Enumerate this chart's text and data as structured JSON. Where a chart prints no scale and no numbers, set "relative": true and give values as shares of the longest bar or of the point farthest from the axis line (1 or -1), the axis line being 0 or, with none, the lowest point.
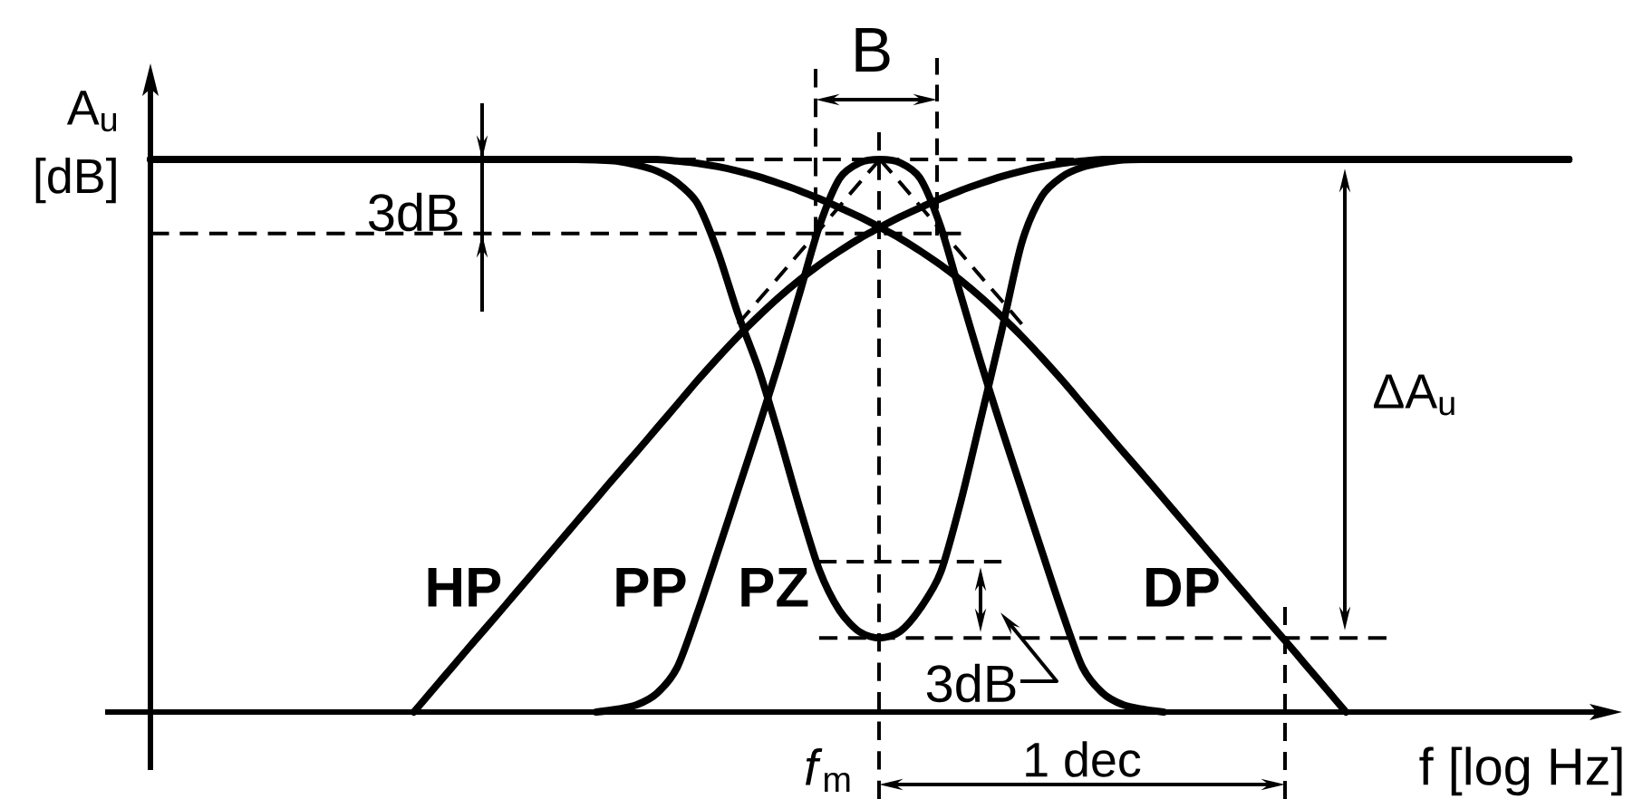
{
  "chart_data": {
    "type": "line",
    "relative": true,
    "xlabel": "f [log Hz]",
    "ylabel": "A$_{u}$ [dB]",
    "categories": [
      null,
      null,
      null,
      null,
      null,
      null,
      null,
      null,
      null,
      null,
      null,
      null,
      null,
      null,
      null,
      null,
      null,
      null,
      null,
      null,
      null,
      null,
      null,
      null,
      null,
      null,
      null,
      null,
      null,
      null,
      null,
      null,
      null,
      null,
      null,
      null,
      null,
      null,
      null,
      null,
      null,
      null,
      null,
      null,
      null,
      null,
      null,
      null,
      null,
      null,
      null,
      null,
      null,
      null,
      null,
      null,
      null,
      null,
      null,
      null,
      null,
      null,
      null,
      null,
      null,
      null,
      null,
      null,
      null,
      null,
      null
    ],
    "annotations": [
      "3dB",
      "B",
      "ΔA$_{u}$",
      "3dB",
      "1 dec",
      "*f*$_{m}$"
    ],
    "series": [
      {
        "name": "HP",
        "color": "#000000",
        "values": [
          null,
          null,
          null,
          null,
          null,
          null,
          null,
          null,
          null,
          null,
          null,
          null,
          null,
          0,
          0.043,
          0.086,
          0.129,
          0.171,
          0.214,
          0.257,
          0.3,
          0.343,
          0.386,
          0.429,
          0.471,
          0.514,
          0.557,
          0.6,
          0.641,
          0.68,
          0.716,
          0.75,
          0.781,
          0.809,
          0.834,
          0.857,
          0.877,
          0.896,
          0.913,
          0.929,
          0.944,
          0.957,
          0.969,
          0.979,
          0.987,
          0.993,
          0.997,
          1,
          1,
          1,
          1,
          1,
          1,
          1,
          1,
          1,
          1,
          1,
          1,
          1,
          1,
          1,
          1,
          1,
          1,
          1,
          1,
          1,
          1,
          1,
          1
        ]
      },
      {
        "name": "PP",
        "color": "#000000",
        "values": [
          null,
          null,
          null,
          null,
          null,
          null,
          null,
          null,
          null,
          null,
          null,
          null,
          null,
          null,
          null,
          null,
          null,
          null,
          null,
          null,
          null,
          null,
          0,
          0.005,
          0.013,
          0.034,
          0.081,
          0.18,
          0.29,
          0.402,
          0.514,
          0.63,
          0.753,
          0.878,
          0.965,
          0.994,
          1,
          0.994,
          0.965,
          0.878,
          0.753,
          0.63,
          0.514,
          0.402,
          0.29,
          0.18,
          0.081,
          0.034,
          0.013,
          0.005,
          0,
          null,
          null,
          null,
          null,
          null,
          null,
          null,
          null,
          null,
          null,
          null,
          null,
          null,
          null,
          null,
          null,
          null,
          null,
          null,
          null
        ]
      },
      {
        "name": "PZ",
        "color": "#000000",
        "values": [
          1,
          1,
          1,
          1,
          1,
          1,
          1,
          1,
          1,
          1,
          1,
          1,
          1,
          1,
          1,
          1,
          1,
          1,
          1,
          1,
          1,
          1,
          0.999,
          0.997,
          0.99,
          0.979,
          0.958,
          0.92,
          0.833,
          0.72,
          0.622,
          0.503,
          0.375,
          0.258,
          0.184,
          0.145,
          0.134,
          0.146,
          0.188,
          0.253,
          0.382,
          0.534,
          0.688,
          0.849,
          0.934,
          0.969,
          0.986,
          0.994,
          0.999,
          1,
          1,
          1,
          1,
          1,
          1,
          1,
          1,
          1,
          1,
          1,
          1,
          1,
          1,
          1,
          1,
          1,
          1,
          1,
          1,
          1,
          1
        ]
      },
      {
        "name": "DP",
        "color": "#000000",
        "values": [
          1,
          1,
          1,
          1,
          1,
          1,
          1,
          1,
          1,
          1,
          1,
          1,
          1,
          1,
          1,
          1,
          1,
          1,
          1,
          1,
          1,
          1,
          1,
          1,
          1,
          1,
          0.997,
          0.993,
          0.987,
          0.979,
          0.969,
          0.957,
          0.944,
          0.929,
          0.913,
          0.896,
          0.877,
          0.857,
          0.834,
          0.809,
          0.781,
          0.75,
          0.716,
          0.68,
          0.641,
          0.6,
          0.557,
          0.514,
          0.471,
          0.429,
          0.386,
          0.343,
          0.3,
          0.257,
          0.214,
          0.171,
          0.129,
          0.086,
          0.043,
          0,
          null,
          null,
          null,
          null,
          null,
          null,
          null,
          null,
          null,
          null,
          null
        ]
      },
      {
        "color": "#000000",
        "line_style": "dashed",
        "values": [
          null,
          null,
          null,
          null,
          null,
          null,
          null,
          null,
          null,
          null,
          null,
          null,
          null,
          null,
          null,
          null,
          null,
          null,
          null,
          null,
          null,
          null,
          null,
          null,
          null,
          null,
          null,
          null,
          null,
          0.702,
          0.745,
          0.787,
          0.83,
          0.872,
          0.915,
          0.958,
          1,
          null,
          null,
          null,
          null,
          null,
          null,
          null,
          null,
          null,
          null,
          null,
          null,
          null,
          null,
          null,
          null,
          null,
          null,
          null,
          null,
          null,
          null,
          null,
          null,
          null,
          null,
          null,
          null,
          null,
          null,
          null,
          null,
          null,
          null
        ]
      },
      {
        "color": "#000000",
        "line_style": "dashed",
        "values": [
          null,
          null,
          null,
          null,
          null,
          null,
          null,
          null,
          null,
          null,
          null,
          null,
          null,
          null,
          null,
          null,
          null,
          null,
          null,
          null,
          null,
          null,
          null,
          null,
          null,
          null,
          null,
          null,
          null,
          null,
          null,
          null,
          null,
          null,
          null,
          null,
          1,
          0.958,
          0.915,
          0.872,
          0.83,
          0.787,
          0.745,
          0.702,
          null,
          null,
          null,
          null,
          null,
          null,
          null,
          null,
          null,
          null,
          null,
          null,
          null,
          null,
          null,
          null,
          null,
          null,
          null,
          null,
          null,
          null,
          null,
          null,
          null,
          null,
          null
        ]
      },
      {
        "color": "#000000",
        "line_style": "dashed",
        "values": [
          null,
          null,
          null,
          null,
          null,
          null,
          null,
          null,
          null,
          null,
          null,
          null,
          null,
          null,
          null,
          null,
          null,
          null,
          null,
          null,
          null,
          null,
          null,
          null,
          null,
          null,
          1,
          1,
          1,
          1,
          1,
          1,
          1,
          1,
          1,
          1,
          1,
          1,
          1,
          1,
          1,
          1,
          1,
          1,
          1,
          1,
          1,
          1,
          null,
          null,
          null,
          null,
          null,
          null,
          null,
          null,
          null,
          null,
          null,
          null,
          null,
          null,
          null,
          null,
          null,
          null,
          null,
          null,
          null,
          null,
          null
        ]
      },
      {
        "color": "#000000",
        "line_style": "dashed",
        "values": [
          0.866,
          0.866,
          0.866,
          0.866,
          0.866,
          0.866,
          0.866,
          0.866,
          0.866,
          0.866,
          0.866,
          0.866,
          0.866,
          0.866,
          0.866,
          0.866,
          0.866,
          0.866,
          0.866,
          0.866,
          0.866,
          0.866,
          0.866,
          0.866,
          0.866,
          0.866,
          0.866,
          0.866,
          0.866,
          0.866,
          0.866,
          0.866,
          0.866,
          0.866,
          0.866,
          0.866,
          0.866,
          0.866,
          0.866,
          0.866,
          0.866,
          null,
          null,
          null,
          null,
          null,
          null,
          null,
          null,
          null,
          null,
          null,
          null,
          null,
          null,
          null,
          null,
          null,
          null,
          null,
          null,
          null,
          null,
          null,
          null,
          null,
          null,
          null,
          null,
          null,
          null
        ]
      },
      {
        "color": "#000000",
        "line_style": "dashed",
        "values": [
          null,
          null,
          null,
          null,
          null,
          null,
          null,
          null,
          null,
          null,
          null,
          null,
          null,
          null,
          null,
          null,
          null,
          null,
          null,
          null,
          null,
          null,
          null,
          null,
          null,
          null,
          null,
          null,
          null,
          null,
          null,
          null,
          null,
          0.272,
          0.272,
          0.272,
          0.272,
          0.272,
          0.272,
          0.272,
          0.272,
          0.272,
          0.272,
          null,
          null,
          null,
          null,
          null,
          null,
          null,
          null,
          null,
          null,
          null,
          null,
          null,
          null,
          null,
          null,
          null,
          null,
          null,
          null,
          null,
          null,
          null,
          null,
          null,
          null,
          null,
          null
        ]
      },
      {
        "color": "#000000",
        "line_style": "dashed",
        "values": [
          null,
          null,
          null,
          null,
          null,
          null,
          null,
          null,
          null,
          null,
          null,
          null,
          null,
          null,
          null,
          null,
          null,
          null,
          null,
          null,
          null,
          null,
          null,
          null,
          null,
          null,
          null,
          null,
          null,
          null,
          null,
          null,
          null,
          0.134,
          0.134,
          0.134,
          0.134,
          0.134,
          0.134,
          0.134,
          0.134,
          0.134,
          0.134,
          0.134,
          0.134,
          0.134,
          0.134,
          0.134,
          0.134,
          0.134,
          0.134,
          0.134,
          0.134,
          0.134,
          0.134,
          0.134,
          0.134,
          0.134,
          0.134,
          0.134,
          0.134,
          0.134,
          null,
          null,
          null,
          null,
          null,
          null,
          null,
          null,
          null
        ]
      }
    ]
  }
}
